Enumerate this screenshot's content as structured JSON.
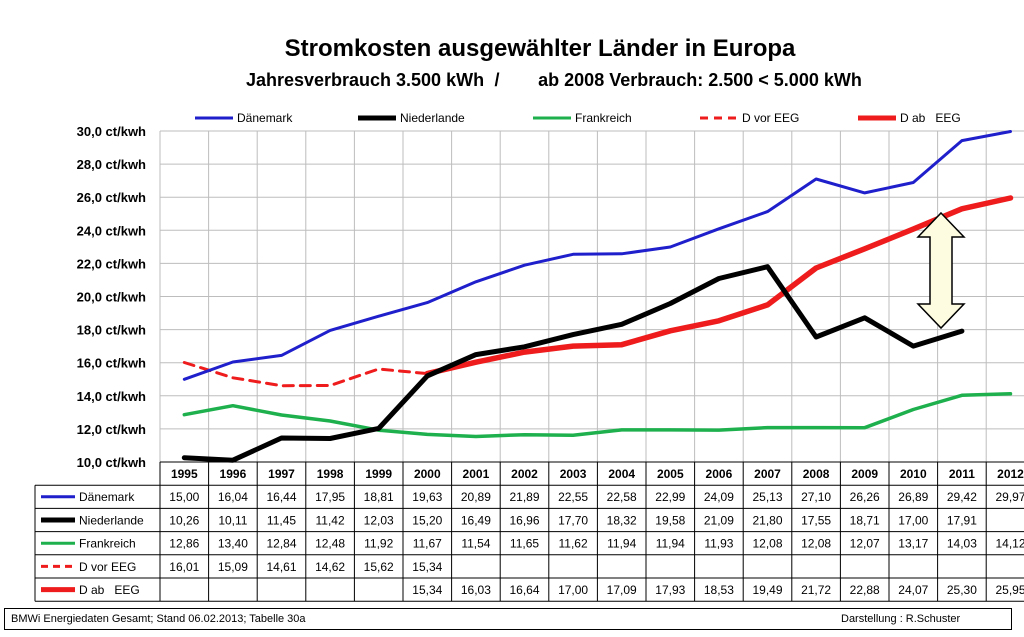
{
  "colors": {
    "daenemark": "#1f1fcc",
    "niederlande": "#000000",
    "frankreich": "#1db04d",
    "d_vor_eeg": "#ee1c1c",
    "d_ab_eeg": "#ee1c1c",
    "arrow_fill": "#fdfbe0",
    "grid": "#bdbdbd"
  },
  "chart_data": {
    "type": "line",
    "title": "Stromkosten ausgewählter Länder in Europa",
    "subtitle_left": "Jahresverbrauch 3.500 kWh",
    "subtitle_sep": "/",
    "subtitle_right": "ab 2008 Verbrauch: 2.500 < 5.000 kWh",
    "ylim": [
      10,
      30
    ],
    "yticks": [
      {
        "value": 10,
        "label": "10,0 ct/kwh"
      },
      {
        "value": 12,
        "label": "12,0 ct/kwh"
      },
      {
        "value": 14,
        "label": "14,0 ct/kwh"
      },
      {
        "value": 16,
        "label": "16,0 ct/kwh"
      },
      {
        "value": 18,
        "label": "18,0 ct/kwh"
      },
      {
        "value": 20,
        "label": "20,0 ct/kwh"
      },
      {
        "value": 22,
        "label": "22,0 ct/kwh"
      },
      {
        "value": 24,
        "label": "24,0 ct/kwh"
      },
      {
        "value": 26,
        "label": "26,0 ct/kwh"
      },
      {
        "value": 28,
        "label": "28,0 ct/kwh"
      },
      {
        "value": 30,
        "label": "30,0 ct/kwh"
      }
    ],
    "categories": [
      "1995",
      "1996",
      "1997",
      "1998",
      "1999",
      "2000",
      "2001",
      "2002",
      "2003",
      "2004",
      "2005",
      "2006",
      "2007",
      "2008",
      "2009",
      "2010",
      "2011",
      "2012"
    ],
    "series": [
      {
        "key": "daenemark",
        "name": "Dänemark",
        "dash": false,
        "values": [
          15.0,
          16.04,
          16.44,
          17.95,
          18.81,
          19.63,
          20.89,
          21.89,
          22.55,
          22.58,
          22.99,
          24.09,
          25.13,
          27.1,
          26.26,
          26.89,
          29.42,
          29.97
        ],
        "labels": [
          "15,00",
          "16,04",
          "16,44",
          "17,95",
          "18,81",
          "19,63",
          "20,89",
          "21,89",
          "22,55",
          "22,58",
          "22,99",
          "24,09",
          "25,13",
          "27,10",
          "26,26",
          "26,89",
          "29,42",
          "29,97"
        ]
      },
      {
        "key": "niederlande",
        "name": "Niederlande",
        "dash": false,
        "values": [
          10.26,
          10.11,
          11.45,
          11.42,
          12.03,
          15.2,
          16.49,
          16.96,
          17.7,
          18.32,
          19.58,
          21.09,
          21.8,
          17.55,
          18.71,
          17.0,
          17.91,
          null
        ],
        "labels": [
          "10,26",
          "10,11",
          "11,45",
          "11,42",
          "12,03",
          "15,20",
          "16,49",
          "16,96",
          "17,70",
          "18,32",
          "19,58",
          "21,09",
          "21,80",
          "17,55",
          "18,71",
          "17,00",
          "17,91",
          ""
        ]
      },
      {
        "key": "frankreich",
        "name": "Frankreich",
        "dash": false,
        "values": [
          12.86,
          13.4,
          12.84,
          12.48,
          11.92,
          11.67,
          11.54,
          11.65,
          11.62,
          11.94,
          11.94,
          11.93,
          12.08,
          12.08,
          12.07,
          13.17,
          14.03,
          14.12
        ],
        "labels": [
          "12,86",
          "13,40",
          "12,84",
          "12,48",
          "11,92",
          "11,67",
          "11,54",
          "11,65",
          "11,62",
          "11,94",
          "11,94",
          "11,93",
          "12,08",
          "12,08",
          "12,07",
          "13,17",
          "14,03",
          "14,12"
        ]
      },
      {
        "key": "d_vor_eeg",
        "name": "D vor EEG",
        "dash": true,
        "values": [
          16.01,
          15.09,
          14.61,
          14.62,
          15.62,
          15.34,
          null,
          null,
          null,
          null,
          null,
          null,
          null,
          null,
          null,
          null,
          null,
          null
        ],
        "labels": [
          "16,01",
          "15,09",
          "14,61",
          "14,62",
          "15,62",
          "15,34",
          "",
          "",
          "",
          "",
          "",
          "",
          "",
          "",
          "",
          "",
          "",
          ""
        ]
      },
      {
        "key": "d_ab_eeg",
        "name": "D ab   EEG",
        "dash": false,
        "values": [
          null,
          null,
          null,
          null,
          null,
          15.34,
          16.03,
          16.64,
          17.0,
          17.09,
          17.93,
          18.53,
          19.49,
          21.72,
          22.88,
          24.07,
          25.3,
          25.95
        ],
        "labels": [
          "",
          "",
          "",
          "",
          "",
          "15,34",
          "16,03",
          "16,64",
          "17,00",
          "17,09",
          "17,93",
          "18,53",
          "19,49",
          "21,72",
          "22,88",
          "24,07",
          "25,30",
          "25,95"
        ]
      }
    ]
  },
  "footer": {
    "source": "BMWi Energiedaten Gesamt; Stand 06.02.2013;  Tabelle 30a",
    "credit": "Darstellung : R.Schuster"
  }
}
